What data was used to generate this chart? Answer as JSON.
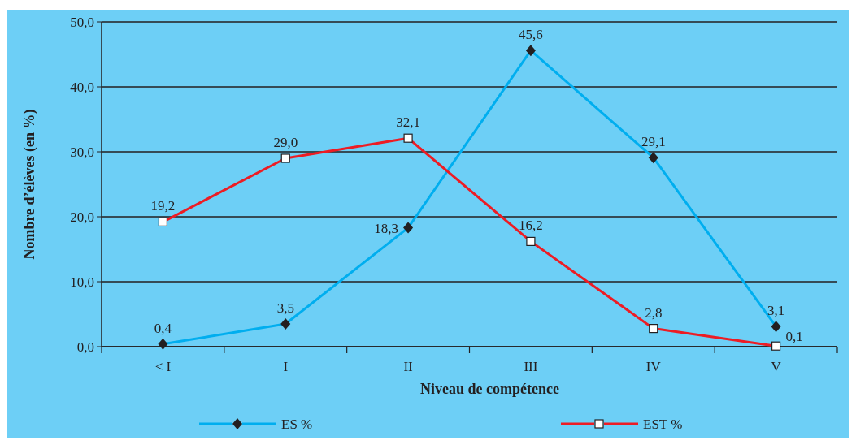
{
  "chart_data": {
    "type": "line",
    "xlabel": "Niveau de compétence",
    "ylabel": "Nombre d’élèves (en %)",
    "categories": [
      "< I",
      "I",
      "II",
      "III",
      "IV",
      "V"
    ],
    "series": [
      {
        "name": "ES %",
        "color": "#00aeef",
        "marker": "diamond",
        "values": [
          0.4,
          3.5,
          18.3,
          45.6,
          29.1,
          3.1
        ],
        "value_labels": [
          "0,4",
          "3,5",
          "18,3",
          "45,6",
          "29,1",
          "3,1"
        ]
      },
      {
        "name": "EST %",
        "color": "#ed1c24",
        "marker": "square",
        "values": [
          19.2,
          29.0,
          32.1,
          16.2,
          2.8,
          0.1
        ],
        "value_labels": [
          "19,2",
          "29,0",
          "32,1",
          "16,2",
          "2,8",
          "0,1"
        ]
      }
    ],
    "ylim": [
      0,
      50
    ],
    "yticks": [
      {
        "value": 0,
        "label": "0,0"
      },
      {
        "value": 10,
        "label": "10,0"
      },
      {
        "value": 20,
        "label": "20,0"
      },
      {
        "value": 30,
        "label": "30,0"
      },
      {
        "value": 40,
        "label": "40,0"
      },
      {
        "value": 50,
        "label": "50,0"
      }
    ],
    "grid": "y",
    "legend": "bottom",
    "line_style": "solid"
  }
}
